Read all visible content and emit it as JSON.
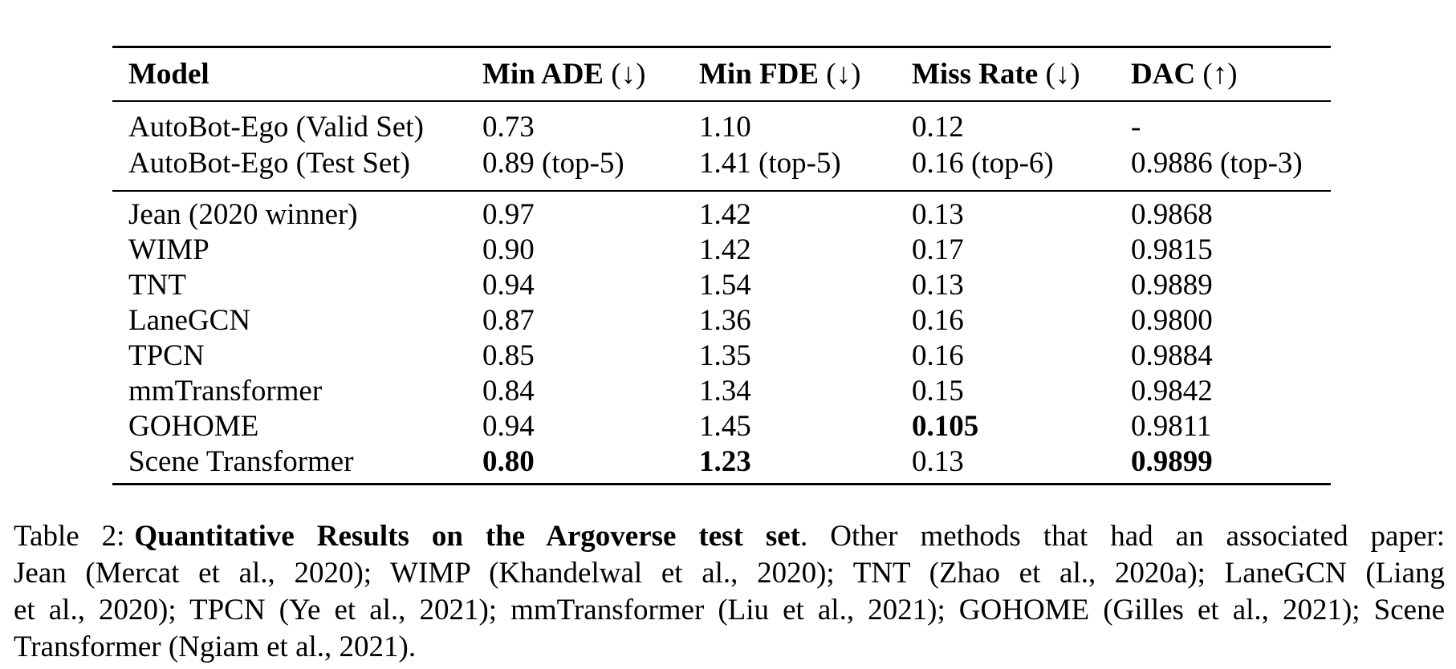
{
  "page": {
    "background_color": "#ffffff",
    "text_color": "#000000"
  },
  "table": {
    "header": [
      {
        "label": "Model",
        "suffix": ""
      },
      {
        "label": "Min ADE",
        "suffix": "(↓)"
      },
      {
        "label": "Min FDE",
        "suffix": "(↓)"
      },
      {
        "label": "Miss Rate",
        "suffix": "(↓)"
      },
      {
        "label": "DAC",
        "suffix": "(↑)"
      }
    ],
    "sections": [
      {
        "rows": [
          {
            "cells": [
              {
                "text": "AutoBot-Ego (Valid Set)",
                "bold": false
              },
              {
                "text": "0.73",
                "bold": false
              },
              {
                "text": "1.10",
                "bold": false
              },
              {
                "text": "0.12",
                "bold": false
              },
              {
                "text": "-",
                "bold": false
              }
            ]
          },
          {
            "cells": [
              {
                "text": "AutoBot-Ego (Test Set)",
                "bold": false
              },
              {
                "text": "0.89 (top-5)",
                "bold": false
              },
              {
                "text": "1.41 (top-5)",
                "bold": false
              },
              {
                "text": "0.16 (top-6)",
                "bold": false
              },
              {
                "text": "0.9886 (top-3)",
                "bold": false
              }
            ]
          }
        ]
      },
      {
        "rows": [
          {
            "cells": [
              {
                "text": "Jean (2020 winner)",
                "bold": false
              },
              {
                "text": "0.97",
                "bold": false
              },
              {
                "text": "1.42",
                "bold": false
              },
              {
                "text": "0.13",
                "bold": false
              },
              {
                "text": "0.9868",
                "bold": false
              }
            ]
          },
          {
            "cells": [
              {
                "text": "WIMP",
                "bold": false
              },
              {
                "text": "0.90",
                "bold": false
              },
              {
                "text": "1.42",
                "bold": false
              },
              {
                "text": "0.17",
                "bold": false
              },
              {
                "text": "0.9815",
                "bold": false
              }
            ]
          },
          {
            "cells": [
              {
                "text": "TNT",
                "bold": false
              },
              {
                "text": "0.94",
                "bold": false
              },
              {
                "text": "1.54",
                "bold": false
              },
              {
                "text": "0.13",
                "bold": false
              },
              {
                "text": "0.9889",
                "bold": false
              }
            ]
          },
          {
            "cells": [
              {
                "text": "LaneGCN",
                "bold": false
              },
              {
                "text": "0.87",
                "bold": false
              },
              {
                "text": "1.36",
                "bold": false
              },
              {
                "text": "0.16",
                "bold": false
              },
              {
                "text": "0.9800",
                "bold": false
              }
            ]
          },
          {
            "cells": [
              {
                "text": "TPCN",
                "bold": false
              },
              {
                "text": "0.85",
                "bold": false
              },
              {
                "text": "1.35",
                "bold": false
              },
              {
                "text": "0.16",
                "bold": false
              },
              {
                "text": "0.9884",
                "bold": false
              }
            ]
          },
          {
            "cells": [
              {
                "text": "mmTransformer",
                "bold": false
              },
              {
                "text": "0.84",
                "bold": false
              },
              {
                "text": "1.34",
                "bold": false
              },
              {
                "text": "0.15",
                "bold": false
              },
              {
                "text": "0.9842",
                "bold": false
              }
            ]
          },
          {
            "cells": [
              {
                "text": "GOHOME",
                "bold": false
              },
              {
                "text": "0.94",
                "bold": false
              },
              {
                "text": "1.45",
                "bold": false
              },
              {
                "text": "0.105",
                "bold": true
              },
              {
                "text": "0.9811",
                "bold": false
              }
            ]
          },
          {
            "cells": [
              {
                "text": "Scene Transformer",
                "bold": false
              },
              {
                "text": "0.80",
                "bold": true
              },
              {
                "text": "1.23",
                "bold": true
              },
              {
                "text": "0.13",
                "bold": false
              },
              {
                "text": "0.9899",
                "bold": true
              }
            ]
          }
        ]
      }
    ]
  },
  "caption": {
    "label": "Table 2:",
    "title_bold": "Quantitative Results on the Argoverse test set",
    "line1_rest": ". Other methods that had an associated paper:",
    "line2": "Jean (Mercat et al., 2020); WIMP (Khandelwal et al., 2020); TNT (Zhao et al., 2020a); LaneGCN (Liang",
    "line3": "et al., 2020); TPCN (Ye et al., 2021); mmTransformer (Liu et al., 2021); GOHOME (Gilles et al., 2021); Scene",
    "line4": "Transformer (Ngiam et al., 2021)."
  }
}
